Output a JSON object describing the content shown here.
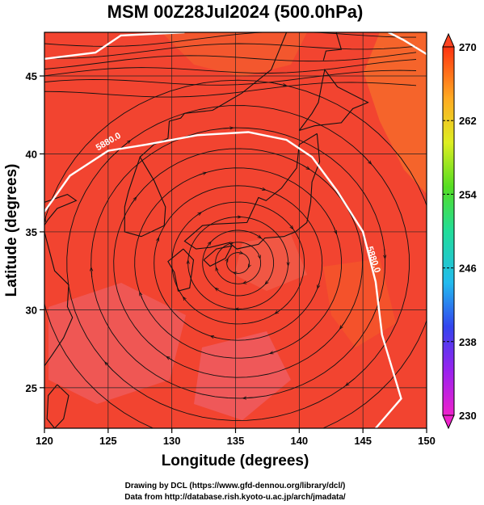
{
  "title": "MSM 00Z28Jul2024 (500.0hPa)",
  "xlabel": "Longitude (degrees)",
  "ylabel": "Latitude  (degrees)",
  "x_ticks": [
    "120",
    "125",
    "130",
    "135",
    "140",
    "145",
    "150"
  ],
  "y_ticks": [
    "25",
    "30",
    "35",
    "40",
    "45"
  ],
  "colorbar": {
    "ticks": [
      "230",
      "238",
      "246",
      "254",
      "262",
      "270"
    ],
    "min": 230,
    "max": 270
  },
  "contour_label": "5880.0",
  "credits": {
    "line1": "Drawing by DCL (https://www.gfd-dennou.org/library/dcl/)",
    "line2": "Data from http://database.rish.kyoto-u.ac.jp/arch/jmadata/"
  },
  "map": {
    "lon_range": [
      120,
      150
    ],
    "lat_range": [
      22.4,
      47.8
    ],
    "anticyclone_center": [
      135.2,
      33.0
    ],
    "field": "temperature (K) shaded, wind streamlines, geopotential height contour"
  }
}
